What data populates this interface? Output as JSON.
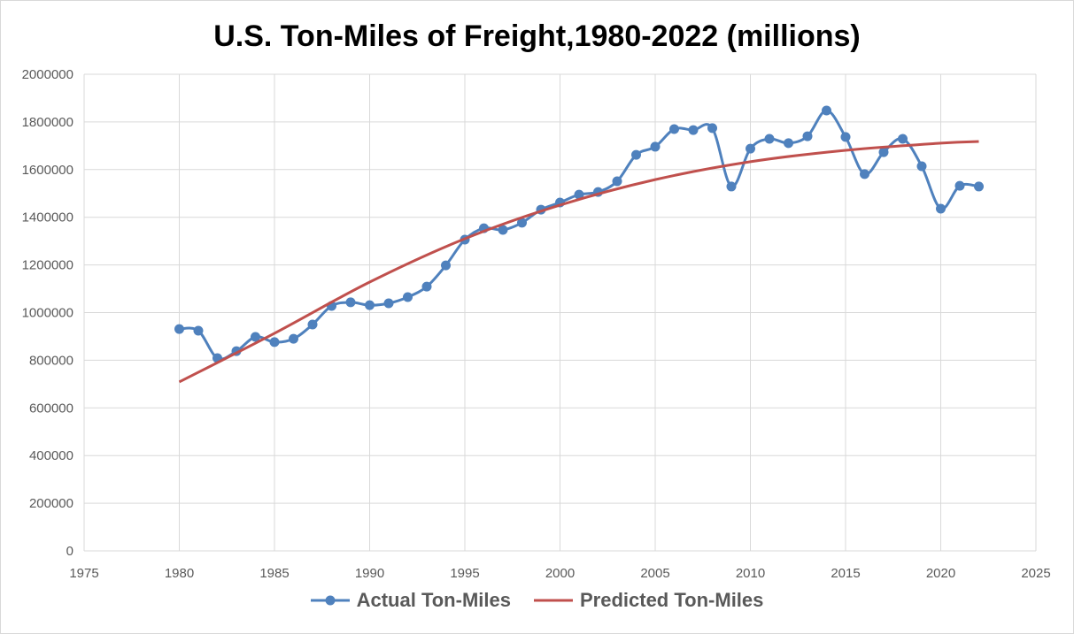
{
  "chart_data": {
    "type": "line",
    "title": "U.S. Ton-Miles of Freight,1980-2022 (millions)",
    "xlabel": "",
    "ylabel": "",
    "xlim": [
      1975,
      2025
    ],
    "ylim": [
      0,
      2000000
    ],
    "x_ticks": [
      "1975",
      "1980",
      "1985",
      "1990",
      "1995",
      "2000",
      "2005",
      "2010",
      "2015",
      "2020",
      "2025"
    ],
    "y_ticks": [
      "0",
      "200000",
      "400000",
      "600000",
      "800000",
      "1000000",
      "1200000",
      "1400000",
      "1600000",
      "1800000",
      "2000000"
    ],
    "grid": true,
    "legend_position": "bottom",
    "series": [
      {
        "name": "Actual Ton-Miles",
        "color": "#4f81bd",
        "marker": "circle",
        "smooth": true,
        "x": [
          1980,
          1981,
          1982,
          1983,
          1984,
          1985,
          1986,
          1987,
          1988,
          1989,
          1990,
          1991,
          1992,
          1993,
          1994,
          1995,
          1996,
          1997,
          1998,
          1999,
          2000,
          2001,
          2002,
          2003,
          2004,
          2005,
          2006,
          2007,
          2008,
          2009,
          2010,
          2011,
          2012,
          2013,
          2014,
          2015,
          2016,
          2017,
          2018,
          2019,
          2020,
          2021,
          2022
        ],
        "values": [
          931000,
          924000,
          809000,
          838000,
          898000,
          876000,
          890000,
          950000,
          1028000,
          1043000,
          1031000,
          1039000,
          1065000,
          1109000,
          1198000,
          1306000,
          1354000,
          1347000,
          1377000,
          1432000,
          1462000,
          1495000,
          1506000,
          1551000,
          1662000,
          1696000,
          1770000,
          1766000,
          1774000,
          1529000,
          1688000,
          1729000,
          1711000,
          1740000,
          1848000,
          1737000,
          1581000,
          1673000,
          1729000,
          1614000,
          1436000,
          1532000,
          1529000
        ]
      },
      {
        "name": "Predicted Ton-Miles",
        "color": "#c0504d",
        "marker": "none",
        "smooth": true,
        "x": [
          1980,
          1985,
          1990,
          1995,
          2000,
          2005,
          2010,
          2015,
          2020,
          2022
        ],
        "values": [
          709000,
          913000,
          1128000,
          1310000,
          1451000,
          1558000,
          1633000,
          1681000,
          1711000,
          1718000
        ]
      }
    ]
  }
}
